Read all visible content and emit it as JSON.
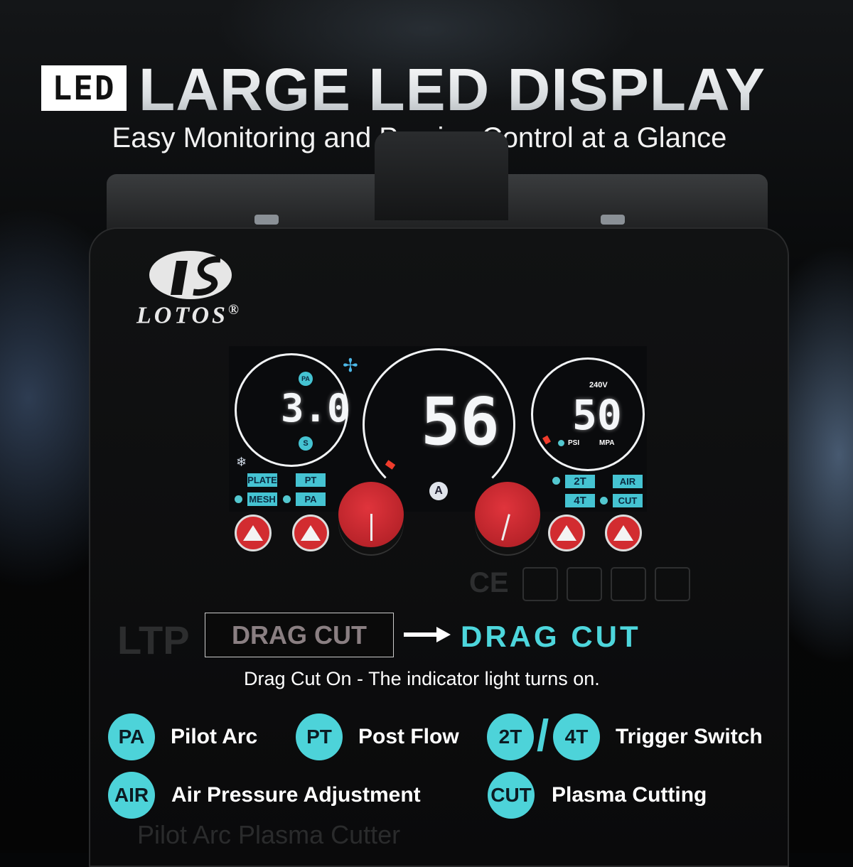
{
  "header": {
    "badge": "LED",
    "title": "LARGE LED DISPLAY",
    "subtitle": "Easy Monitoring and Precise Control at a Glance"
  },
  "brand": {
    "name": "LOTOS",
    "mark": "®"
  },
  "display": {
    "left": {
      "top_icon": "PA",
      "value": "3.0",
      "bottom_icon": "S"
    },
    "center": {
      "value": "56",
      "unit": "A"
    },
    "right": {
      "voltage": "240V",
      "value": "50",
      "unit_psi": "PSI",
      "unit_mpa": "MPA"
    },
    "left_tags": [
      "PLATE",
      "PT",
      "MESH",
      "PA"
    ],
    "right_tags": [
      "2T",
      "AIR",
      "4T",
      "CUT"
    ],
    "icons": [
      "fan-icon",
      "snowflake-icon"
    ]
  },
  "faded_model": {
    "line1": "LTP",
    "line2": "Pilot Arc Plasma Cutter"
  },
  "drag_cut": {
    "boxed": "DRAG CUT",
    "highlight": "DRAG CUT",
    "note": "Drag Cut On - The indicator light turns on.",
    "accent": "#4dd6dc"
  },
  "legend": [
    {
      "badge": "PA",
      "label": "Pilot Arc"
    },
    {
      "badge": "PT",
      "label": "Post Flow"
    },
    {
      "badge": "2T",
      "badge2": "4T",
      "separator": "/",
      "label": "Trigger Switch"
    },
    {
      "badge": "AIR",
      "label": "Air Pressure Adjustment"
    },
    {
      "badge": "CUT",
      "label": "Plasma Cutting"
    }
  ],
  "colors": {
    "teal": "#4dd3d9",
    "knob_red": "#d22c30",
    "lcd_tag": "#45c3d2"
  }
}
